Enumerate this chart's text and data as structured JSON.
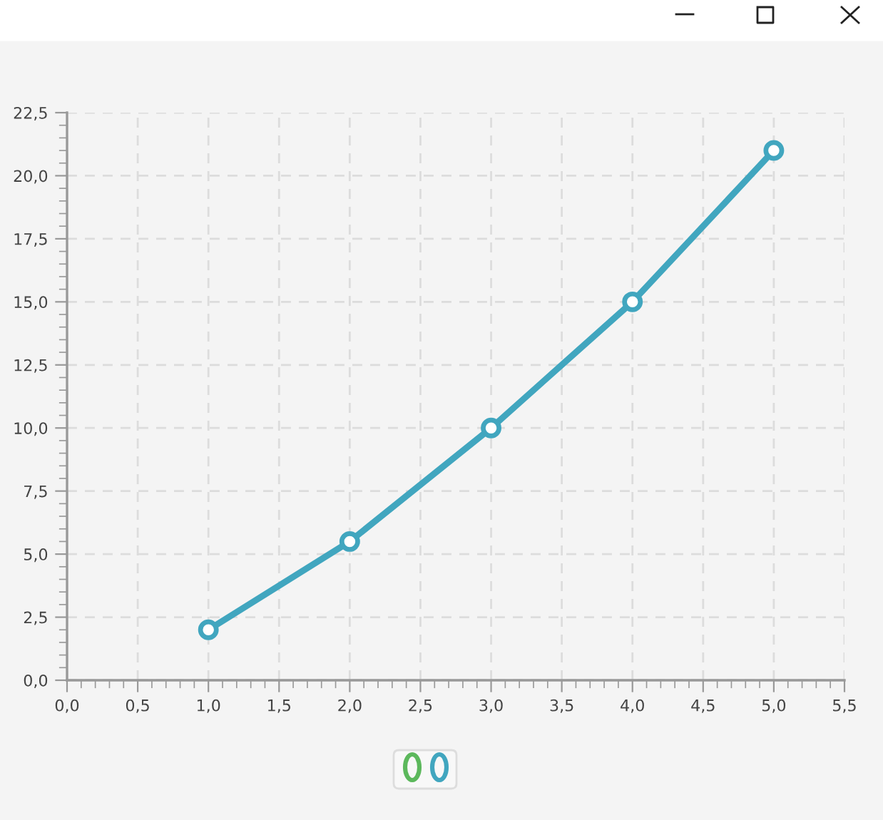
{
  "chart_data": {
    "type": "line",
    "x": [
      1,
      2,
      3,
      4,
      5
    ],
    "series": [
      {
        "color": "#41a6bf",
        "values": [
          2,
          5.5,
          10,
          15,
          21
        ]
      }
    ],
    "xlim": [
      0,
      5.5
    ],
    "xticks": [
      {
        "value": 0,
        "label": "0,0"
      },
      {
        "value": 0.5,
        "label": "0,5"
      },
      {
        "value": 1,
        "label": "1,0"
      },
      {
        "value": 1.5,
        "label": "1,5"
      },
      {
        "value": 2,
        "label": "2,0"
      },
      {
        "value": 2.5,
        "label": "2,5"
      },
      {
        "value": 3,
        "label": "3,0"
      },
      {
        "value": 3.5,
        "label": "3,5"
      },
      {
        "value": 4,
        "label": "4,0"
      },
      {
        "value": 4.5,
        "label": "4,5"
      },
      {
        "value": 5,
        "label": "5,0"
      },
      {
        "value": 5.5,
        "label": "5,5"
      }
    ],
    "ylim": [
      0,
      22.5
    ],
    "yticks": [
      {
        "value": 0,
        "label": "0,0"
      },
      {
        "value": 2.5,
        "label": "2,5"
      },
      {
        "value": 5,
        "label": "5,0"
      },
      {
        "value": 7.5,
        "label": "7,5"
      },
      {
        "value": 10,
        "label": "10,0"
      },
      {
        "value": 12.5,
        "label": "12,5"
      },
      {
        "value": 15,
        "label": "15,0"
      },
      {
        "value": 17.5,
        "label": "17,5"
      },
      {
        "value": 20,
        "label": "20,0"
      },
      {
        "value": 22.5,
        "label": "22,5"
      }
    ],
    "grid": true,
    "marker": "circle",
    "line_style": "solid"
  }
}
